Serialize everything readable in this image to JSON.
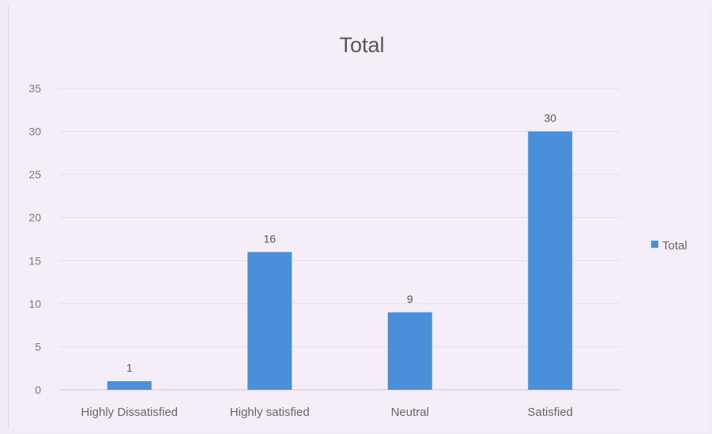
{
  "chart_data": {
    "type": "bar",
    "title": "Total",
    "categories": [
      "Highly Dissatisfied",
      "Highly satisfied",
      "Neutral",
      "Satisfied"
    ],
    "series": [
      {
        "name": "Total",
        "values": [
          1,
          16,
          9,
          30
        ],
        "color": "#4a8fd9"
      }
    ],
    "yticks": [
      "0",
      "5",
      "10",
      "15",
      "20",
      "25",
      "30",
      "35"
    ],
    "ylim": [
      0,
      35
    ],
    "grid": true,
    "legend": "right",
    "data_labels": true
  }
}
